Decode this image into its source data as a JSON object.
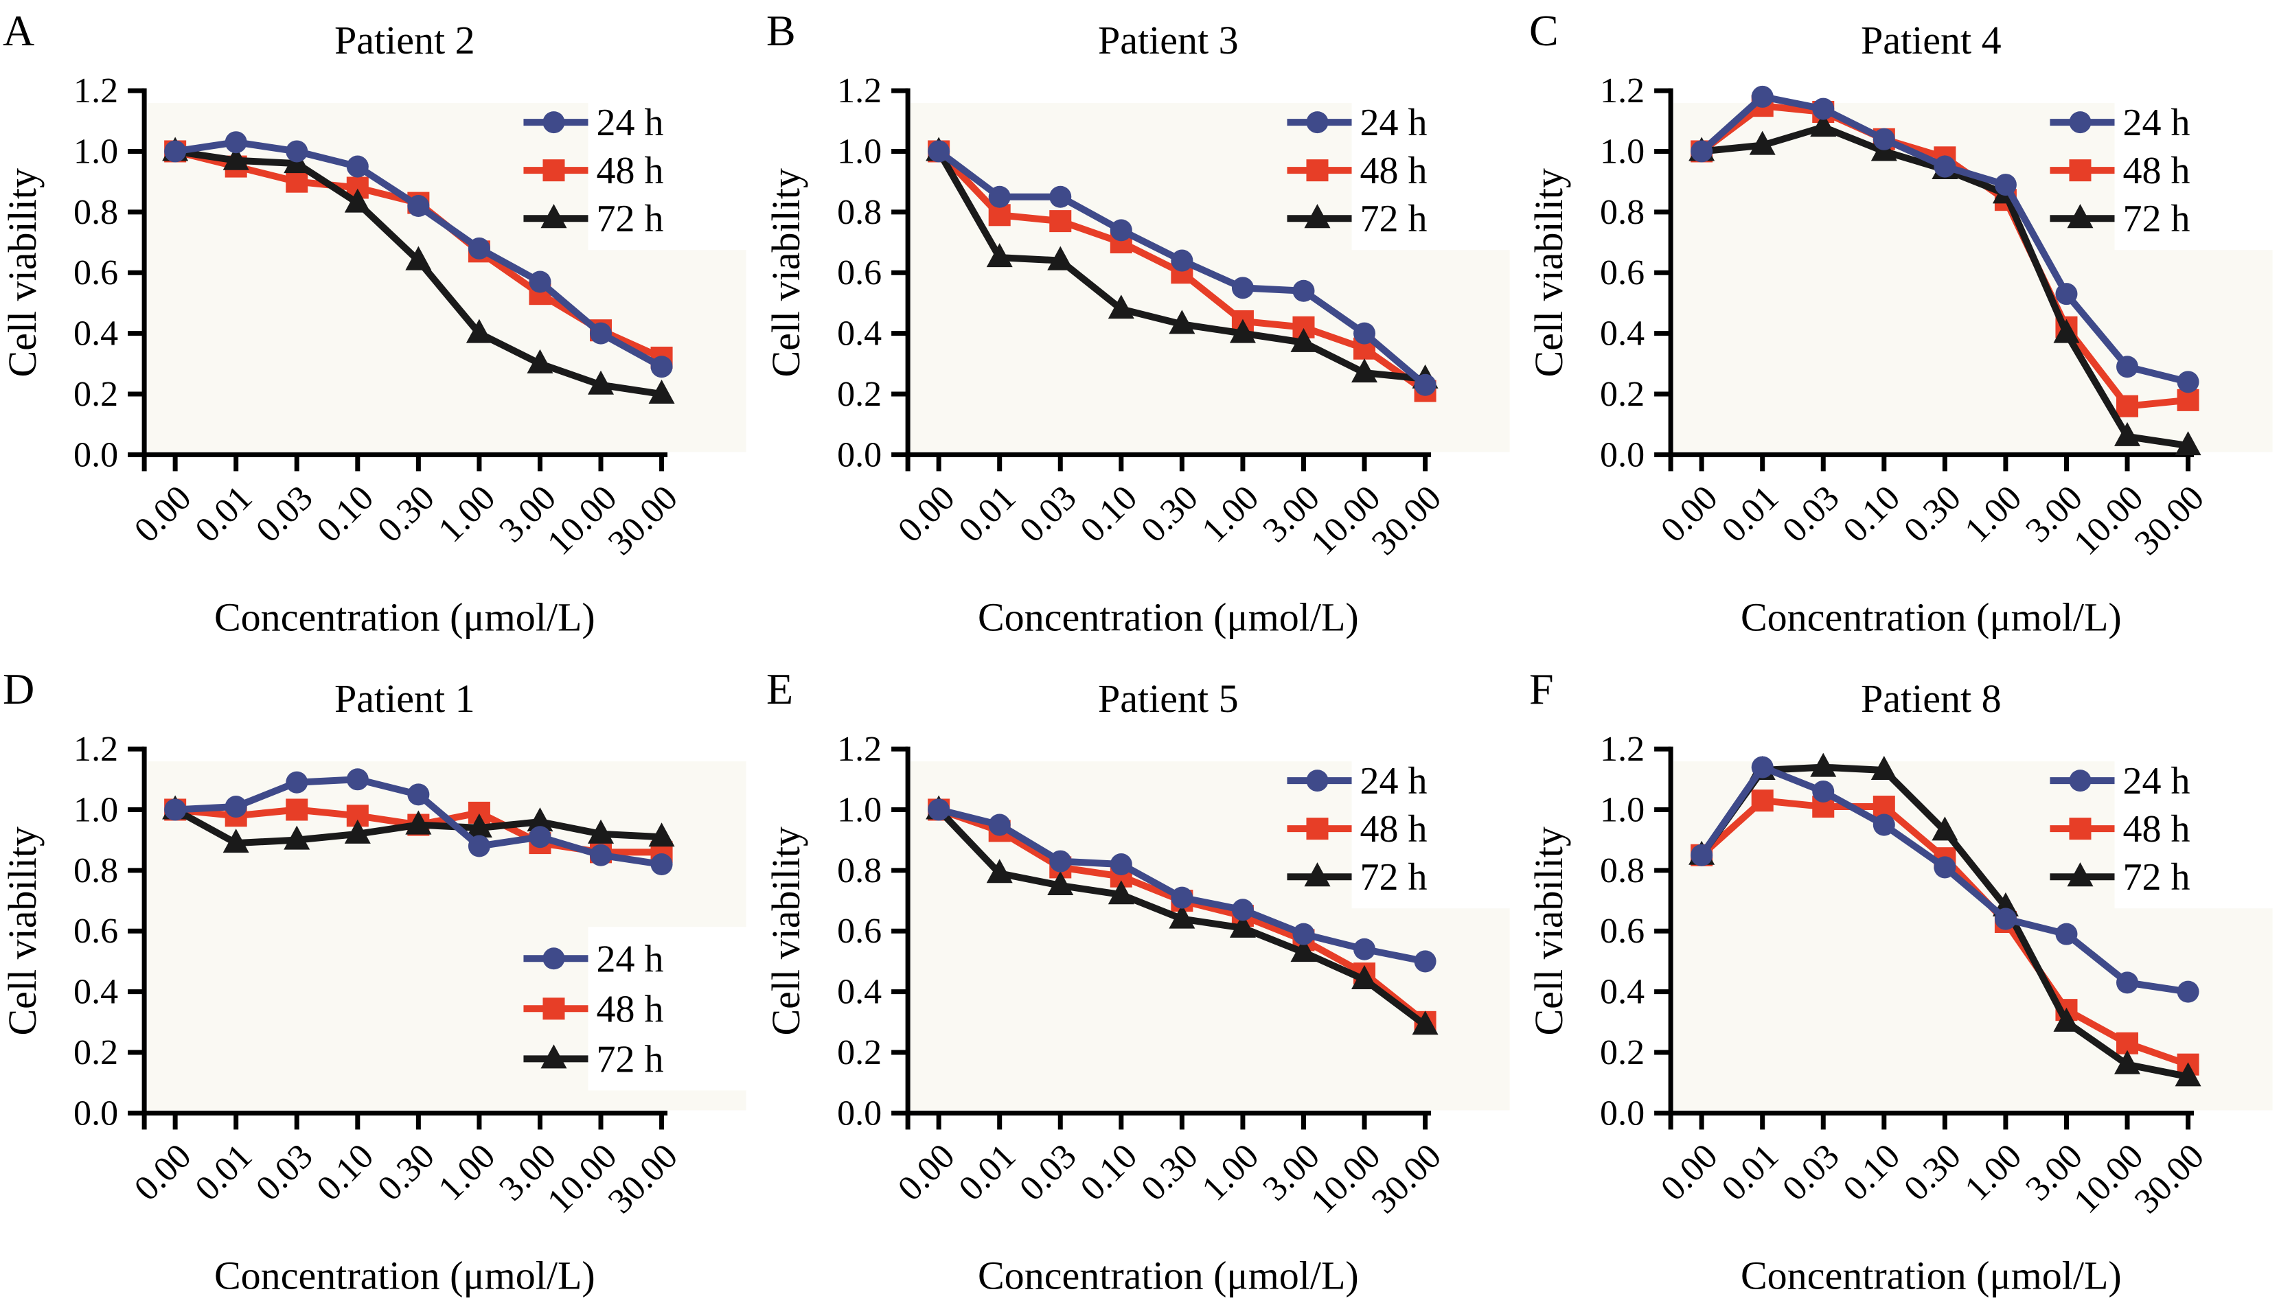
{
  "figure": {
    "ylabel": "Cell viability",
    "xlabel": "Concentration (μmol/L)",
    "panel_letters": [
      "A",
      "B",
      "C",
      "D",
      "E",
      "F"
    ],
    "legend_labels": [
      "24 h",
      "48 h",
      "72 h"
    ]
  },
  "style": {
    "plot_bg": "#FAF9F3",
    "axis_color": "#000000",
    "color_24h": "#3F4A8A",
    "color_48h": "#E73E27",
    "color_72h": "#1A1A1A",
    "marker_24h": "circle",
    "marker_48h": "square",
    "marker_72h": "triangle"
  },
  "chart_data": [
    {
      "type": "line",
      "panel": "A",
      "title": "Patient 2",
      "xlabel": "Concentration (μmol/L)",
      "ylabel": "Cell viability",
      "ylim": [
        0.0,
        1.2
      ],
      "yticks": [
        0.0,
        0.2,
        0.4,
        0.6,
        0.8,
        1.0,
        1.2
      ],
      "categories": [
        "0.00",
        "0.01",
        "0.03",
        "0.10",
        "0.30",
        "1.00",
        "3.00",
        "10.00",
        "30.00"
      ],
      "legend_position": "top-right",
      "series": [
        {
          "name": "24 h",
          "color": "#3F4A8A",
          "marker": "circle",
          "values": [
            1.0,
            1.03,
            1.0,
            0.95,
            0.82,
            0.68,
            0.57,
            0.4,
            0.29
          ]
        },
        {
          "name": "48 h",
          "color": "#E73E27",
          "marker": "square",
          "values": [
            1.0,
            0.95,
            0.9,
            0.88,
            0.83,
            0.67,
            0.53,
            0.41,
            0.32
          ]
        },
        {
          "name": "72 h",
          "color": "#1A1A1A",
          "marker": "triangle",
          "values": [
            1.0,
            0.97,
            0.96,
            0.83,
            0.64,
            0.4,
            0.3,
            0.23,
            0.2
          ]
        }
      ]
    },
    {
      "type": "line",
      "panel": "B",
      "title": "Patient 3",
      "xlabel": "Concentration (μmol/L)",
      "ylabel": "Cell viability",
      "ylim": [
        0.0,
        1.2
      ],
      "yticks": [
        0.0,
        0.2,
        0.4,
        0.6,
        0.8,
        1.0,
        1.2
      ],
      "categories": [
        "0.00",
        "0.01",
        "0.03",
        "0.10",
        "0.30",
        "1.00",
        "3.00",
        "10.00",
        "30.00"
      ],
      "legend_position": "top-right",
      "series": [
        {
          "name": "24 h",
          "color": "#3F4A8A",
          "marker": "circle",
          "values": [
            1.0,
            0.85,
            0.85,
            0.74,
            0.64,
            0.55,
            0.54,
            0.4,
            0.23
          ]
        },
        {
          "name": "48 h",
          "color": "#E73E27",
          "marker": "square",
          "values": [
            1.0,
            0.79,
            0.77,
            0.7,
            0.6,
            0.44,
            0.42,
            0.35,
            0.21
          ]
        },
        {
          "name": "72 h",
          "color": "#1A1A1A",
          "marker": "triangle",
          "values": [
            1.0,
            0.65,
            0.64,
            0.48,
            0.43,
            0.4,
            0.37,
            0.27,
            0.25
          ]
        }
      ]
    },
    {
      "type": "line",
      "panel": "C",
      "title": "Patient 4",
      "xlabel": "Concentration (μmol/L)",
      "ylabel": "Cell viability",
      "ylim": [
        0.0,
        1.2
      ],
      "yticks": [
        0.0,
        0.2,
        0.4,
        0.6,
        0.8,
        1.0,
        1.2
      ],
      "categories": [
        "0.00",
        "0.01",
        "0.03",
        "0.10",
        "0.30",
        "1.00",
        "3.00",
        "10.00",
        "30.00"
      ],
      "legend_position": "top-right",
      "series": [
        {
          "name": "24 h",
          "color": "#3F4A8A",
          "marker": "circle",
          "values": [
            1.0,
            1.18,
            1.14,
            1.04,
            0.95,
            0.89,
            0.53,
            0.29,
            0.24
          ]
        },
        {
          "name": "48 h",
          "color": "#E73E27",
          "marker": "square",
          "values": [
            1.0,
            1.15,
            1.13,
            1.04,
            0.98,
            0.84,
            0.42,
            0.16,
            0.18
          ]
        },
        {
          "name": "72 h",
          "color": "#1A1A1A",
          "marker": "triangle",
          "values": [
            1.0,
            1.02,
            1.08,
            1.0,
            0.94,
            0.86,
            0.4,
            0.06,
            0.03
          ]
        }
      ]
    },
    {
      "type": "line",
      "panel": "D",
      "title": "Patient 1",
      "xlabel": "Concentration (μmol/L)",
      "ylabel": "Cell viability",
      "ylim": [
        0.0,
        1.2
      ],
      "yticks": [
        0.0,
        0.2,
        0.4,
        0.6,
        0.8,
        1.0,
        1.2
      ],
      "categories": [
        "0.00",
        "0.01",
        "0.03",
        "0.10",
        "0.30",
        "1.00",
        "3.00",
        "10.00",
        "30.00"
      ],
      "legend_position": "bottom-right",
      "series": [
        {
          "name": "24 h",
          "color": "#3F4A8A",
          "marker": "circle",
          "values": [
            1.0,
            1.01,
            1.09,
            1.1,
            1.05,
            0.88,
            0.91,
            0.85,
            0.82
          ]
        },
        {
          "name": "48 h",
          "color": "#E73E27",
          "marker": "square",
          "values": [
            1.0,
            0.98,
            1.0,
            0.98,
            0.95,
            0.99,
            0.89,
            0.86,
            0.86
          ]
        },
        {
          "name": "72 h",
          "color": "#1A1A1A",
          "marker": "triangle",
          "values": [
            1.0,
            0.89,
            0.9,
            0.92,
            0.95,
            0.94,
            0.96,
            0.92,
            0.91
          ]
        }
      ]
    },
    {
      "type": "line",
      "panel": "E",
      "title": "Patient 5",
      "xlabel": "Concentration (μmol/L)",
      "ylabel": "Cell viability",
      "ylim": [
        0.0,
        1.2
      ],
      "yticks": [
        0.0,
        0.2,
        0.4,
        0.6,
        0.8,
        1.0,
        1.2
      ],
      "categories": [
        "0.00",
        "0.01",
        "0.03",
        "0.10",
        "0.30",
        "1.00",
        "3.00",
        "10.00",
        "30.00"
      ],
      "legend_position": "top-right",
      "series": [
        {
          "name": "24 h",
          "color": "#3F4A8A",
          "marker": "circle",
          "values": [
            1.0,
            0.95,
            0.83,
            0.82,
            0.71,
            0.67,
            0.59,
            0.54,
            0.5
          ]
        },
        {
          "name": "48 h",
          "color": "#E73E27",
          "marker": "square",
          "values": [
            1.0,
            0.93,
            0.81,
            0.78,
            0.7,
            0.65,
            0.57,
            0.46,
            0.3
          ]
        },
        {
          "name": "72 h",
          "color": "#1A1A1A",
          "marker": "triangle",
          "values": [
            1.0,
            0.79,
            0.75,
            0.72,
            0.64,
            0.61,
            0.53,
            0.44,
            0.29
          ]
        }
      ]
    },
    {
      "type": "line",
      "panel": "F",
      "title": "Patient 8",
      "xlabel": "Concentration (μmol/L)",
      "ylabel": "Cell viability",
      "ylim": [
        0.0,
        1.2
      ],
      "yticks": [
        0.0,
        0.2,
        0.4,
        0.6,
        0.8,
        1.0,
        1.2
      ],
      "categories": [
        "0.00",
        "0.01",
        "0.03",
        "0.10",
        "0.30",
        "1.00",
        "3.00",
        "10.00",
        "30.00"
      ],
      "legend_position": "top-right",
      "series": [
        {
          "name": "24 h",
          "color": "#3F4A8A",
          "marker": "circle",
          "values": [
            0.85,
            1.14,
            1.06,
            0.95,
            0.81,
            0.64,
            0.59,
            0.43,
            0.4
          ]
        },
        {
          "name": "48 h",
          "color": "#E73E27",
          "marker": "square",
          "values": [
            0.85,
            1.03,
            1.01,
            1.01,
            0.84,
            0.63,
            0.34,
            0.23,
            0.16
          ]
        },
        {
          "name": "72 h",
          "color": "#1A1A1A",
          "marker": "triangle",
          "values": [
            0.85,
            1.13,
            1.14,
            1.13,
            0.93,
            0.68,
            0.3,
            0.16,
            0.12
          ]
        }
      ]
    }
  ]
}
